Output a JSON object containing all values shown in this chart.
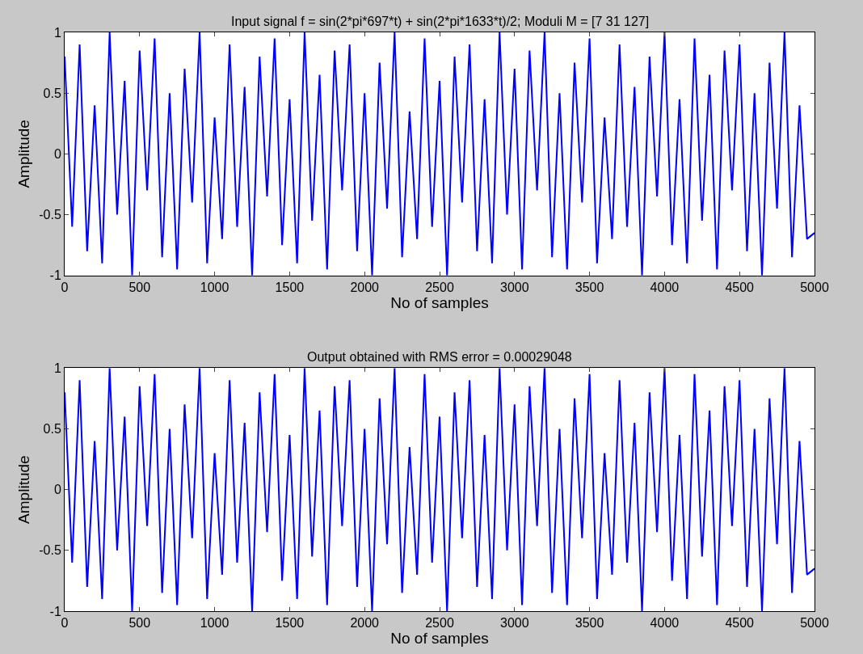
{
  "chart_data": [
    {
      "type": "line",
      "title": "Input signal f = sin(2*pi*697*t) + sin(2*pi*1633*t)/2; Moduli M = [7 31 127]",
      "xlabel": "No of samples",
      "ylabel": "Amplitude",
      "color": "#0000ff",
      "x": [
        0,
        50,
        100,
        150,
        200,
        250,
        300,
        350,
        400,
        450,
        500,
        550,
        600,
        650,
        700,
        750,
        800,
        850,
        900,
        950,
        1000,
        1050,
        1100,
        1150,
        1200,
        1250,
        1300,
        1350,
        1400,
        1450,
        1500,
        1550,
        1600,
        1650,
        1700,
        1750,
        1800,
        1850,
        1900,
        1950,
        2000,
        2050,
        2100,
        2150,
        2200,
        2250,
        2300,
        2350,
        2400,
        2450,
        2500,
        2550,
        2600,
        2650,
        2700,
        2750,
        2800,
        2850,
        2900,
        2950,
        3000,
        3050,
        3100,
        3150,
        3200,
        3250,
        3300,
        3350,
        3400,
        3450,
        3500,
        3550,
        3600,
        3650,
        3700,
        3750,
        3800,
        3850,
        3900,
        3950,
        4000,
        4050,
        4100,
        4150,
        4200,
        4250,
        4300,
        4350,
        4400,
        4450,
        4500,
        4550,
        4600,
        4650,
        4700,
        4750,
        4800,
        4850,
        4900,
        4950,
        5000
      ],
      "values": [
        0.8,
        -0.6,
        0.9,
        -0.8,
        0.4,
        -0.9,
        1.0,
        -0.5,
        0.6,
        -1.0,
        0.85,
        -0.3,
        0.95,
        -0.85,
        0.5,
        -0.95,
        0.7,
        -0.4,
        1.0,
        -0.9,
        0.3,
        -0.7,
        0.9,
        -0.6,
        0.55,
        -1.0,
        0.8,
        -0.35,
        0.95,
        -0.75,
        0.45,
        -0.9,
        1.0,
        -0.55,
        0.65,
        -0.95,
        0.85,
        -0.3,
        0.9,
        -0.8,
        0.5,
        -1.0,
        0.75,
        -0.45,
        1.0,
        -0.85,
        0.35,
        -0.7,
        0.95,
        -0.6,
        0.6,
        -1.0,
        0.8,
        -0.4,
        0.9,
        -0.8,
        0.45,
        -0.9,
        1.0,
        -0.5,
        0.7,
        -0.95,
        0.85,
        -0.3,
        1.0,
        -0.85,
        0.5,
        -0.95,
        0.75,
        -0.4,
        0.95,
        -0.9,
        0.3,
        -0.7,
        0.9,
        -0.6,
        0.55,
        -1.0,
        0.8,
        -0.35,
        1.0,
        -0.75,
        0.45,
        -0.9,
        0.95,
        -0.55,
        0.65,
        -0.95,
        0.85,
        -0.3,
        0.9,
        -0.8,
        0.5,
        -1.0,
        0.75,
        -0.45,
        1.0,
        -0.85,
        0.4,
        -0.7,
        -0.65
      ],
      "xlim": [
        0,
        5000
      ],
      "xticks": [
        0,
        500,
        1000,
        1500,
        2000,
        2500,
        3000,
        3500,
        4000,
        4500,
        5000
      ],
      "ylim": [
        -1,
        1
      ],
      "yticks": [
        -1,
        -0.5,
        0,
        0.5,
        1
      ],
      "marker": "none",
      "line_style": "solid"
    },
    {
      "type": "line",
      "title": "Output obtained with RMS error = 0.00029048",
      "xlabel": "No of samples",
      "ylabel": "Amplitude",
      "color": "#0000ff",
      "x": [
        0,
        50,
        100,
        150,
        200,
        250,
        300,
        350,
        400,
        450,
        500,
        550,
        600,
        650,
        700,
        750,
        800,
        850,
        900,
        950,
        1000,
        1050,
        1100,
        1150,
        1200,
        1250,
        1300,
        1350,
        1400,
        1450,
        1500,
        1550,
        1600,
        1650,
        1700,
        1750,
        1800,
        1850,
        1900,
        1950,
        2000,
        2050,
        2100,
        2150,
        2200,
        2250,
        2300,
        2350,
        2400,
        2450,
        2500,
        2550,
        2600,
        2650,
        2700,
        2750,
        2800,
        2850,
        2900,
        2950,
        3000,
        3050,
        3100,
        3150,
        3200,
        3250,
        3300,
        3350,
        3400,
        3450,
        3500,
        3550,
        3600,
        3650,
        3700,
        3750,
        3800,
        3850,
        3900,
        3950,
        4000,
        4050,
        4100,
        4150,
        4200,
        4250,
        4300,
        4350,
        4400,
        4450,
        4500,
        4550,
        4600,
        4650,
        4700,
        4750,
        4800,
        4850,
        4900,
        4950,
        5000
      ],
      "values": [
        0.8,
        -0.6,
        0.9,
        -0.8,
        0.4,
        -0.9,
        1.0,
        -0.5,
        0.6,
        -1.0,
        0.85,
        -0.3,
        0.95,
        -0.85,
        0.5,
        -0.95,
        0.7,
        -0.4,
        1.0,
        -0.9,
        0.3,
        -0.7,
        0.9,
        -0.6,
        0.55,
        -1.0,
        0.8,
        -0.35,
        0.95,
        -0.75,
        0.45,
        -0.9,
        1.0,
        -0.55,
        0.65,
        -0.95,
        0.85,
        -0.3,
        0.9,
        -0.8,
        0.5,
        -1.0,
        0.75,
        -0.45,
        1.0,
        -0.85,
        0.35,
        -0.7,
        0.95,
        -0.6,
        0.6,
        -1.0,
        0.8,
        -0.4,
        0.9,
        -0.8,
        0.45,
        -0.9,
        1.0,
        -0.5,
        0.7,
        -0.95,
        0.85,
        -0.3,
        1.0,
        -0.85,
        0.5,
        -0.95,
        0.75,
        -0.4,
        0.95,
        -0.9,
        0.3,
        -0.7,
        0.9,
        -0.6,
        0.55,
        -1.0,
        0.8,
        -0.35,
        1.0,
        -0.75,
        0.45,
        -0.9,
        0.95,
        -0.55,
        0.65,
        -0.95,
        0.85,
        -0.3,
        0.9,
        -0.8,
        0.5,
        -1.0,
        0.75,
        -0.45,
        1.0,
        -0.85,
        0.4,
        -0.7,
        -0.65
      ],
      "xlim": [
        0,
        5000
      ],
      "xticks": [
        0,
        500,
        1000,
        1500,
        2000,
        2500,
        3000,
        3500,
        4000,
        4500,
        5000
      ],
      "ylim": [
        -1,
        1
      ],
      "yticks": [
        -1,
        -0.5,
        0,
        0.5,
        1
      ],
      "marker": "none",
      "line_style": "solid"
    }
  ]
}
